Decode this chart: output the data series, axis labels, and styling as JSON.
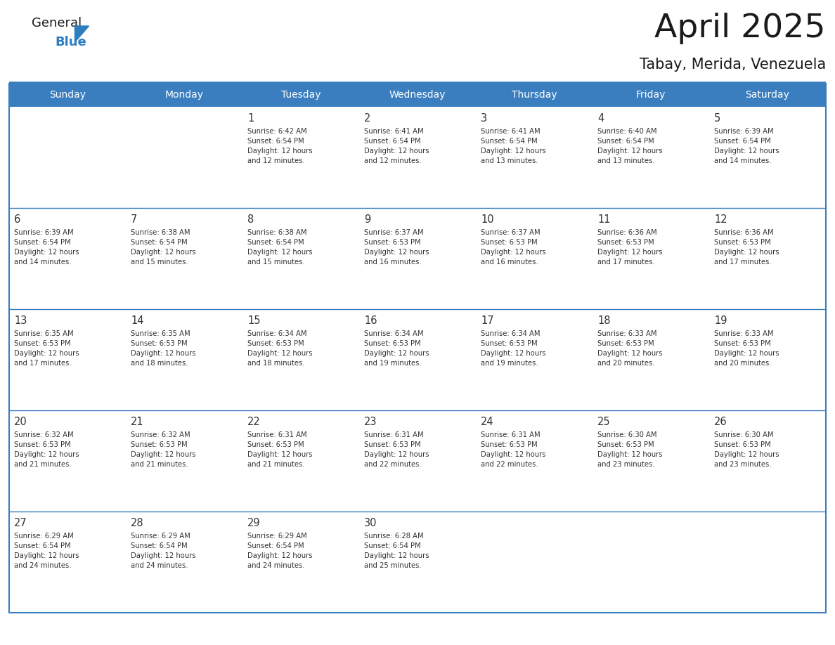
{
  "title": "April 2025",
  "subtitle": "Tabay, Merida, Venezuela",
  "header_bg": "#3a7ebf",
  "header_text_color": "#FFFFFF",
  "cell_bg": "#FFFFFF",
  "cell_bg_last_row": "#F0F0F0",
  "border_color": "#3a7ebf",
  "row_sep_color": "#3a7ebf",
  "days_of_week": [
    "Sunday",
    "Monday",
    "Tuesday",
    "Wednesday",
    "Thursday",
    "Friday",
    "Saturday"
  ],
  "logo_general_color": "#1a1a1a",
  "logo_blue_color": "#2E7DC0",
  "title_color": "#1a1a1a",
  "subtitle_color": "#1a1a1a",
  "text_color": "#333333",
  "calendar": [
    [
      {
        "day": "",
        "info": ""
      },
      {
        "day": "",
        "info": ""
      },
      {
        "day": "1",
        "info": "Sunrise: 6:42 AM\nSunset: 6:54 PM\nDaylight: 12 hours\nand 12 minutes."
      },
      {
        "day": "2",
        "info": "Sunrise: 6:41 AM\nSunset: 6:54 PM\nDaylight: 12 hours\nand 12 minutes."
      },
      {
        "day": "3",
        "info": "Sunrise: 6:41 AM\nSunset: 6:54 PM\nDaylight: 12 hours\nand 13 minutes."
      },
      {
        "day": "4",
        "info": "Sunrise: 6:40 AM\nSunset: 6:54 PM\nDaylight: 12 hours\nand 13 minutes."
      },
      {
        "day": "5",
        "info": "Sunrise: 6:39 AM\nSunset: 6:54 PM\nDaylight: 12 hours\nand 14 minutes."
      }
    ],
    [
      {
        "day": "6",
        "info": "Sunrise: 6:39 AM\nSunset: 6:54 PM\nDaylight: 12 hours\nand 14 minutes."
      },
      {
        "day": "7",
        "info": "Sunrise: 6:38 AM\nSunset: 6:54 PM\nDaylight: 12 hours\nand 15 minutes."
      },
      {
        "day": "8",
        "info": "Sunrise: 6:38 AM\nSunset: 6:54 PM\nDaylight: 12 hours\nand 15 minutes."
      },
      {
        "day": "9",
        "info": "Sunrise: 6:37 AM\nSunset: 6:53 PM\nDaylight: 12 hours\nand 16 minutes."
      },
      {
        "day": "10",
        "info": "Sunrise: 6:37 AM\nSunset: 6:53 PM\nDaylight: 12 hours\nand 16 minutes."
      },
      {
        "day": "11",
        "info": "Sunrise: 6:36 AM\nSunset: 6:53 PM\nDaylight: 12 hours\nand 17 minutes."
      },
      {
        "day": "12",
        "info": "Sunrise: 6:36 AM\nSunset: 6:53 PM\nDaylight: 12 hours\nand 17 minutes."
      }
    ],
    [
      {
        "day": "13",
        "info": "Sunrise: 6:35 AM\nSunset: 6:53 PM\nDaylight: 12 hours\nand 17 minutes."
      },
      {
        "day": "14",
        "info": "Sunrise: 6:35 AM\nSunset: 6:53 PM\nDaylight: 12 hours\nand 18 minutes."
      },
      {
        "day": "15",
        "info": "Sunrise: 6:34 AM\nSunset: 6:53 PM\nDaylight: 12 hours\nand 18 minutes."
      },
      {
        "day": "16",
        "info": "Sunrise: 6:34 AM\nSunset: 6:53 PM\nDaylight: 12 hours\nand 19 minutes."
      },
      {
        "day": "17",
        "info": "Sunrise: 6:34 AM\nSunset: 6:53 PM\nDaylight: 12 hours\nand 19 minutes."
      },
      {
        "day": "18",
        "info": "Sunrise: 6:33 AM\nSunset: 6:53 PM\nDaylight: 12 hours\nand 20 minutes."
      },
      {
        "day": "19",
        "info": "Sunrise: 6:33 AM\nSunset: 6:53 PM\nDaylight: 12 hours\nand 20 minutes."
      }
    ],
    [
      {
        "day": "20",
        "info": "Sunrise: 6:32 AM\nSunset: 6:53 PM\nDaylight: 12 hours\nand 21 minutes."
      },
      {
        "day": "21",
        "info": "Sunrise: 6:32 AM\nSunset: 6:53 PM\nDaylight: 12 hours\nand 21 minutes."
      },
      {
        "day": "22",
        "info": "Sunrise: 6:31 AM\nSunset: 6:53 PM\nDaylight: 12 hours\nand 21 minutes."
      },
      {
        "day": "23",
        "info": "Sunrise: 6:31 AM\nSunset: 6:53 PM\nDaylight: 12 hours\nand 22 minutes."
      },
      {
        "day": "24",
        "info": "Sunrise: 6:31 AM\nSunset: 6:53 PM\nDaylight: 12 hours\nand 22 minutes."
      },
      {
        "day": "25",
        "info": "Sunrise: 6:30 AM\nSunset: 6:53 PM\nDaylight: 12 hours\nand 23 minutes."
      },
      {
        "day": "26",
        "info": "Sunrise: 6:30 AM\nSunset: 6:53 PM\nDaylight: 12 hours\nand 23 minutes."
      }
    ],
    [
      {
        "day": "27",
        "info": "Sunrise: 6:29 AM\nSunset: 6:54 PM\nDaylight: 12 hours\nand 24 minutes."
      },
      {
        "day": "28",
        "info": "Sunrise: 6:29 AM\nSunset: 6:54 PM\nDaylight: 12 hours\nand 24 minutes."
      },
      {
        "day": "29",
        "info": "Sunrise: 6:29 AM\nSunset: 6:54 PM\nDaylight: 12 hours\nand 24 minutes."
      },
      {
        "day": "30",
        "info": "Sunrise: 6:28 AM\nSunset: 6:54 PM\nDaylight: 12 hours\nand 25 minutes."
      },
      {
        "day": "",
        "info": ""
      },
      {
        "day": "",
        "info": ""
      },
      {
        "day": "",
        "info": ""
      }
    ]
  ]
}
